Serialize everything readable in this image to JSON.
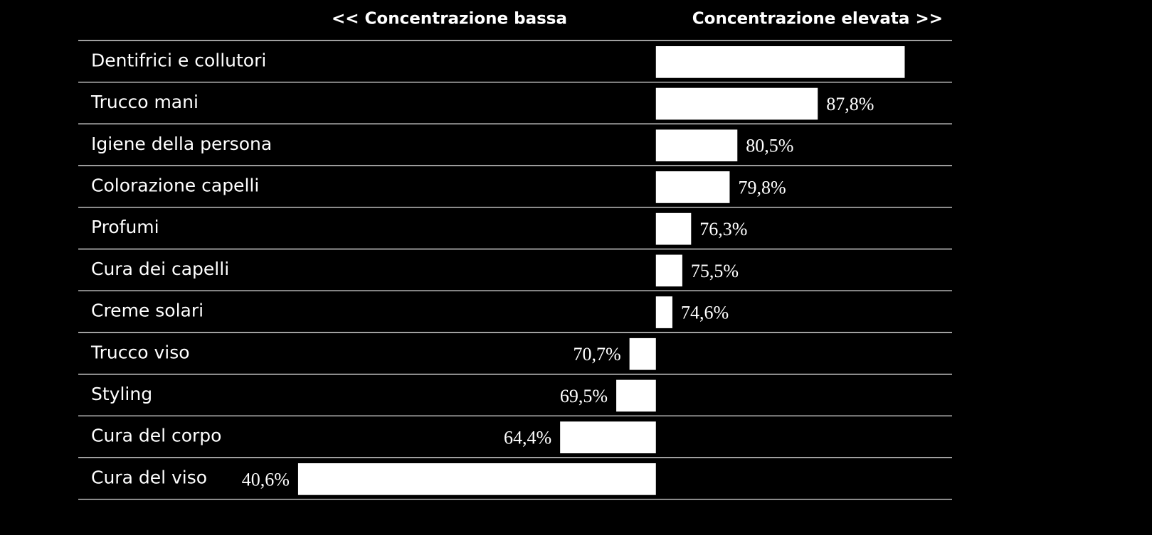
{
  "chart_data": {
    "type": "bar",
    "header_left": "<< Concentrazione bassa",
    "header_right": "Concentrazione elevata >>",
    "categories": [
      "Dentifrici e collutori",
      "Trucco mani",
      "Igiene della persona",
      "Colorazione capelli",
      "Profumi",
      "Cura dei capelli",
      "Creme solari",
      "Trucco viso",
      "Styling",
      "Cura del corpo",
      "Cura del viso"
    ],
    "values": [
      95.7,
      87.8,
      80.5,
      79.8,
      76.3,
      75.5,
      74.6,
      70.7,
      69.5,
      64.4,
      40.6
    ],
    "value_labels": [
      null,
      "87,8%",
      "80,5%",
      "79,8%",
      "76,3%",
      "75,5%",
      "74,6%",
      "70,7%",
      "69,5%",
      "64,4%",
      "40,6%"
    ],
    "baseline": 73.1,
    "xlim": [
      35.5,
      100
    ],
    "color": "#ffffff"
  }
}
